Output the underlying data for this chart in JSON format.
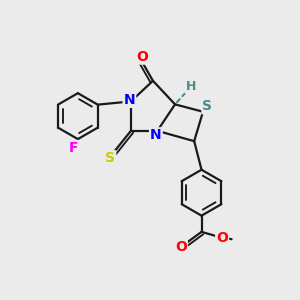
{
  "bg_color": "#ebebeb",
  "bond_color": "#1a1a1a",
  "bond_width": 1.6,
  "atom_colors": {
    "N": "#0000ff",
    "O": "#ff0000",
    "S_thioxo": "#cccc00",
    "S_ring": "#4a8a8a",
    "F": "#ff00ff",
    "H": "#4a8a8a",
    "C": "#1a1a1a"
  },
  "font_size": 10,
  "title": ""
}
